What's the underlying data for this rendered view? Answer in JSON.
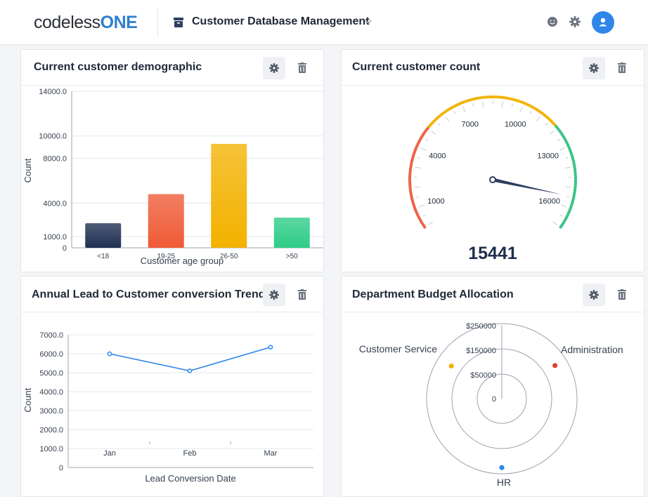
{
  "header": {
    "logo_part1": "codeless",
    "logo_part2": "ONE",
    "app_title": "Customer Database Management",
    "icons": [
      "box-icon",
      "chevron-down-icon",
      "smiley-icon",
      "gear-icon",
      "user-icon"
    ]
  },
  "cards": {
    "demographic": {
      "title": "Current customer demographic"
    },
    "count": {
      "title": "Current customer count"
    },
    "trend": {
      "title": "Annual Lead to Customer conversion Trend"
    },
    "budget": {
      "title": "Department Budget Allocation"
    }
  },
  "colors": {
    "accent": "#2f86e8",
    "logo_blue": "#2f7fd1",
    "bars": [
      "#1e2f52",
      "#ef5a36",
      "#f3b200",
      "#2ecc87"
    ],
    "gauge_low": "#ef6448",
    "gauge_mid": "#f2b50f",
    "gauge_high": "#3fc48a",
    "needle": "#2c3e63",
    "line": "#2f86e8",
    "polar_points": [
      "#f3b200",
      "#e0442c",
      "#2f86e8"
    ]
  },
  "chart_data": [
    {
      "type": "bar",
      "title": "Current customer demographic",
      "xlabel": "Customer age group",
      "ylabel": "Count",
      "categories": [
        "<18",
        "19-25",
        "26-50",
        ">50"
      ],
      "values": [
        2200,
        4800,
        9300,
        2700
      ],
      "ylim": [
        0,
        14000
      ],
      "y_ticks": [
        "0",
        "1000.0",
        "4000.0",
        "8000.0",
        "10000.0",
        "14000.0"
      ],
      "y_tick_values": [
        0,
        1000,
        4000,
        8000,
        10000,
        14000
      ],
      "grid": true
    },
    {
      "type": "gauge",
      "title": "Current customer count",
      "value": 15441,
      "value_label": "15441",
      "range": [
        0,
        17000
      ],
      "tick_labels": [
        "1000",
        "4000",
        "7000",
        "10000",
        "13000",
        "16000"
      ],
      "tick_values": [
        1000,
        4000,
        7000,
        10000,
        13000,
        16000
      ]
    },
    {
      "type": "line",
      "title": "Annual Lead to Customer conversion Trend",
      "xlabel": "Lead Conversion Date",
      "ylabel": "Count",
      "categories": [
        "Jan",
        "Feb",
        "Mar"
      ],
      "values": [
        6000,
        5100,
        6350
      ],
      "ylim": [
        0,
        7000
      ],
      "y_ticks": [
        "0",
        "1000.0",
        "2000.0",
        "3000.0",
        "4000.0",
        "5000.0",
        "6000.0",
        "7000.0"
      ],
      "y_tick_values": [
        0,
        1000,
        2000,
        3000,
        4000,
        5000,
        6000,
        7000
      ],
      "grid": true
    },
    {
      "type": "polar_scatter",
      "title": "Department Budget Allocation",
      "ring_labels": [
        "0",
        "$50000",
        "$150000",
        "$250000"
      ],
      "ring_values": [
        0,
        50000,
        150000,
        250000
      ],
      "max": 300000,
      "points": [
        {
          "name": "Customer Service",
          "value": 240000,
          "angle_deg": 303
        },
        {
          "name": "Administration",
          "value": 250000,
          "angle_deg": 58
        },
        {
          "name": "HR",
          "value": 275000,
          "angle_deg": 180
        }
      ]
    }
  ]
}
